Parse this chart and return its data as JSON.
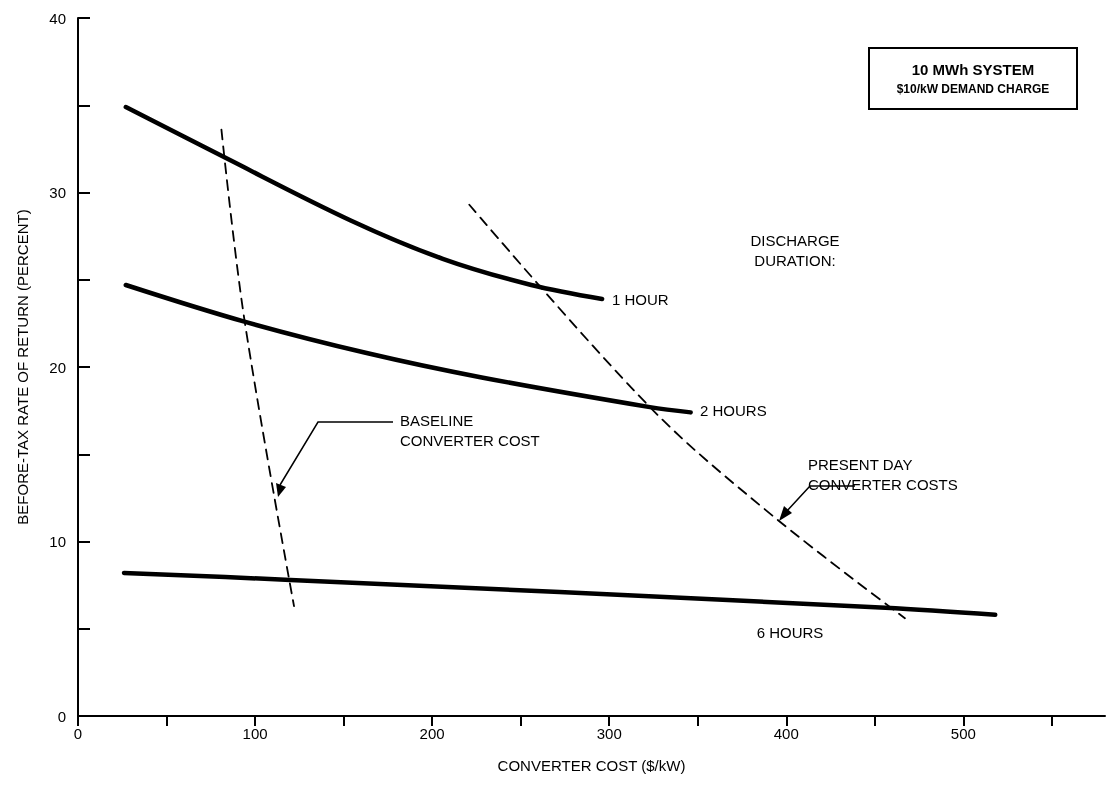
{
  "chart_data": {
    "type": "line",
    "title": "10 MWh SYSTEM",
    "subtitle": "$10/kW DEMAND CHARGE",
    "xlabel": "CONVERTER COST ($/kW)",
    "ylabel": "BEFORE-TAX RATE OF RETURN (PERCENT)",
    "annotations": [
      "DISCHARGE DURATION:"
    ],
    "xlim": [
      0,
      580
    ],
    "xticks": [
      0,
      {
        "value": 50,
        "label": null
      },
      100,
      {
        "value": 150,
        "label": null
      },
      200,
      {
        "value": 250,
        "label": null
      },
      300,
      {
        "value": 350,
        "label": null
      },
      400,
      {
        "value": 450,
        "label": null
      },
      500,
      {
        "value": 550,
        "label": null
      }
    ],
    "ylim": [
      0,
      40
    ],
    "yticks": [
      0,
      {
        "value": 5,
        "label": null
      },
      10,
      {
        "value": 15,
        "label": null
      },
      20,
      {
        "value": 25,
        "label": null
      },
      30,
      {
        "value": 35,
        "label": null
      },
      40
    ],
    "grid": false,
    "legend": false,
    "marker": "none",
    "series": [
      {
        "name": "1 HOUR",
        "color": "#000000",
        "line_style": "solid",
        "x": [
          27,
          83,
          154,
          206,
          256,
          296
        ],
        "values": [
          34.9,
          32.0,
          28.4,
          26.2,
          24.7,
          23.9
        ]
      },
      {
        "name": "2 HOURS",
        "color": "#000000",
        "line_style": "solid",
        "x": [
          27,
          94,
          163,
          228,
          323,
          346
        ],
        "values": [
          24.7,
          22.6,
          20.8,
          19.4,
          17.7,
          17.4
        ]
      },
      {
        "name": "6 HOURS",
        "color": "#000000",
        "line_style": "solid",
        "x": [
          26,
          120,
          272,
          456,
          518
        ],
        "values": [
          8.2,
          7.8,
          7.1,
          6.2,
          5.8
        ]
      },
      {
        "name": "BASELINE CONVERTER COST",
        "color": "#000000",
        "line_style": "dashed",
        "x": [
          81,
          94,
          122
        ],
        "values": [
          33.6,
          22.7,
          6.3
        ]
      },
      {
        "name": "PRESENT DAY CONVERTER COSTS",
        "color": "#000000",
        "line_style": "dashed",
        "x": [
          221,
          323,
          392,
          467
        ],
        "values": [
          29.3,
          17.7,
          11.5,
          5.6
        ]
      }
    ]
  }
}
